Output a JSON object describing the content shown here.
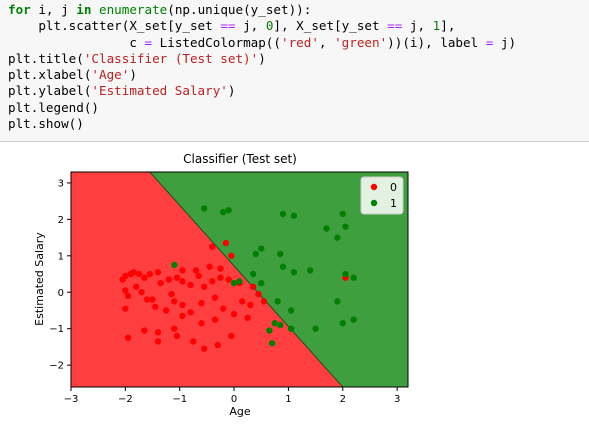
{
  "code": {
    "lines": [
      [
        {
          "t": "for",
          "c": "kw"
        },
        {
          "t": " i, j ",
          "c": ""
        },
        {
          "t": "in",
          "c": "kw"
        },
        {
          "t": " ",
          "c": ""
        },
        {
          "t": "enumerate",
          "c": "bi"
        },
        {
          "t": "(np.unique(y_set)):",
          "c": ""
        }
      ],
      [
        {
          "t": "    plt.scatter(X_set[y_set ",
          "c": ""
        },
        {
          "t": "==",
          "c": "eq"
        },
        {
          "t": " j, ",
          "c": ""
        },
        {
          "t": "0",
          "c": "num"
        },
        {
          "t": "], X_set[y_set ",
          "c": ""
        },
        {
          "t": "==",
          "c": "eq"
        },
        {
          "t": " j, ",
          "c": ""
        },
        {
          "t": "1",
          "c": "num"
        },
        {
          "t": "],",
          "c": ""
        }
      ],
      [
        {
          "t": "                c ",
          "c": ""
        },
        {
          "t": "=",
          "c": "eq"
        },
        {
          "t": " ListedColormap((",
          "c": ""
        },
        {
          "t": "'red'",
          "c": "str"
        },
        {
          "t": ", ",
          "c": ""
        },
        {
          "t": "'green'",
          "c": "str"
        },
        {
          "t": "))(i), label ",
          "c": ""
        },
        {
          "t": "=",
          "c": "eq"
        },
        {
          "t": " j)",
          "c": ""
        }
      ],
      [
        {
          "t": "plt.title(",
          "c": ""
        },
        {
          "t": "'Classifier (Test set)'",
          "c": "str"
        },
        {
          "t": ")",
          "c": ""
        }
      ],
      [
        {
          "t": "plt.xlabel(",
          "c": ""
        },
        {
          "t": "'Age'",
          "c": "str"
        },
        {
          "t": ")",
          "c": ""
        }
      ],
      [
        {
          "t": "plt.ylabel(",
          "c": ""
        },
        {
          "t": "'Estimated Salary'",
          "c": "str"
        },
        {
          "t": ")",
          "c": ""
        }
      ],
      [
        {
          "t": "plt.legend()",
          "c": ""
        }
      ],
      [
        {
          "t": "plt.show()",
          "c": ""
        }
      ]
    ]
  },
  "chart_data": {
    "type": "scatter",
    "title": "Classifier (Test set)",
    "xlabel": "Age",
    "ylabel": "Estimated Salary",
    "xlim": [
      -3,
      3.2
    ],
    "ylim": [
      -2.6,
      3.3
    ],
    "xticks": [
      -3,
      -2,
      -1,
      0,
      1,
      2,
      3
    ],
    "yticks": [
      -2,
      -1,
      0,
      1,
      2,
      3
    ],
    "legend_position": "top-right",
    "region_colors": {
      "0": "#ff3f3f",
      "1": "#3f9f3f"
    },
    "boundary": [
      [
        -1.55,
        3.3
      ],
      [
        2.0,
        -2.6
      ]
    ],
    "series": [
      {
        "name": "0",
        "color": "#ff0000",
        "points": [
          [
            -2.05,
            0.35
          ],
          [
            -2.0,
            0.45
          ],
          [
            -1.9,
            0.5
          ],
          [
            -1.85,
            0.55
          ],
          [
            -1.75,
            0.5
          ],
          [
            -1.65,
            0.4
          ],
          [
            -1.55,
            0.5
          ],
          [
            -1.4,
            0.55
          ],
          [
            -2.0,
            0.05
          ],
          [
            -1.95,
            -0.1
          ],
          [
            -1.8,
            0.15
          ],
          [
            -1.7,
            0.0
          ],
          [
            -1.5,
            -0.2
          ],
          [
            -1.35,
            0.25
          ],
          [
            -1.2,
            0.35
          ],
          [
            -1.05,
            0.4
          ],
          [
            -0.95,
            0.3
          ],
          [
            -0.8,
            0.2
          ],
          [
            -0.65,
            0.45
          ],
          [
            -0.55,
            0.15
          ],
          [
            -0.4,
            0.3
          ],
          [
            -0.25,
            0.4
          ],
          [
            -0.1,
            0.35
          ],
          [
            0.1,
            0.25
          ],
          [
            -0.95,
            0.6
          ],
          [
            -0.7,
            0.6
          ],
          [
            -0.45,
            0.7
          ],
          [
            -0.25,
            0.65
          ],
          [
            -0.05,
            1.0
          ],
          [
            -0.4,
            1.25
          ],
          [
            -0.15,
            1.35
          ],
          [
            -2.0,
            -0.45
          ],
          [
            -1.6,
            -0.2
          ],
          [
            -1.45,
            -0.4
          ],
          [
            -1.25,
            -0.5
          ],
          [
            -1.1,
            -0.25
          ],
          [
            -0.95,
            -0.35
          ],
          [
            -0.8,
            -0.55
          ],
          [
            -0.6,
            -0.3
          ],
          [
            -0.35,
            -0.15
          ],
          [
            -0.2,
            -0.45
          ],
          [
            0.0,
            -0.6
          ],
          [
            0.15,
            -0.25
          ],
          [
            0.3,
            -0.35
          ],
          [
            0.45,
            -0.05
          ],
          [
            0.55,
            -0.25
          ],
          [
            0.35,
            0.15
          ],
          [
            0.25,
            -0.7
          ],
          [
            -0.35,
            -0.75
          ],
          [
            -0.6,
            -0.85
          ],
          [
            -0.95,
            -0.65
          ],
          [
            -1.1,
            -1.0
          ],
          [
            -1.4,
            -1.1
          ],
          [
            -1.65,
            -1.05
          ],
          [
            -1.95,
            -1.25
          ],
          [
            -1.4,
            -1.35
          ],
          [
            -1.05,
            -1.2
          ],
          [
            -0.75,
            -1.35
          ],
          [
            -0.55,
            -1.55
          ],
          [
            -0.3,
            -1.45
          ],
          [
            -0.05,
            -1.2
          ],
          [
            -1.15,
            -0.05
          ],
          [
            2.05,
            0.4
          ]
        ]
      },
      {
        "name": "1",
        "color": "#008000",
        "points": [
          [
            -0.55,
            2.3
          ],
          [
            -0.2,
            2.2
          ],
          [
            -0.1,
            2.25
          ],
          [
            0.9,
            2.15
          ],
          [
            1.1,
            2.1
          ],
          [
            1.7,
            1.75
          ],
          [
            1.9,
            1.5
          ],
          [
            2.0,
            2.15
          ],
          [
            2.05,
            1.8
          ],
          [
            0.4,
            1.05
          ],
          [
            0.5,
            1.2
          ],
          [
            0.85,
            1.05
          ],
          [
            0.9,
            0.7
          ],
          [
            1.1,
            0.55
          ],
          [
            1.4,
            0.6
          ],
          [
            2.05,
            0.5
          ],
          [
            0.35,
            0.5
          ],
          [
            0.5,
            0.25
          ],
          [
            0.1,
            0.3
          ],
          [
            0.8,
            -0.25
          ],
          [
            1.05,
            -0.5
          ],
          [
            0.75,
            -0.85
          ],
          [
            0.85,
            -0.9
          ],
          [
            1.05,
            -1.0
          ],
          [
            0.65,
            -1.05
          ],
          [
            0.7,
            -1.4
          ],
          [
            1.5,
            -1.0
          ],
          [
            1.9,
            -0.25
          ],
          [
            2.0,
            -0.85
          ],
          [
            2.2,
            -0.75
          ],
          [
            2.2,
            0.4
          ],
          [
            -1.1,
            0.75
          ],
          [
            0.0,
            0.25
          ]
        ]
      }
    ]
  }
}
